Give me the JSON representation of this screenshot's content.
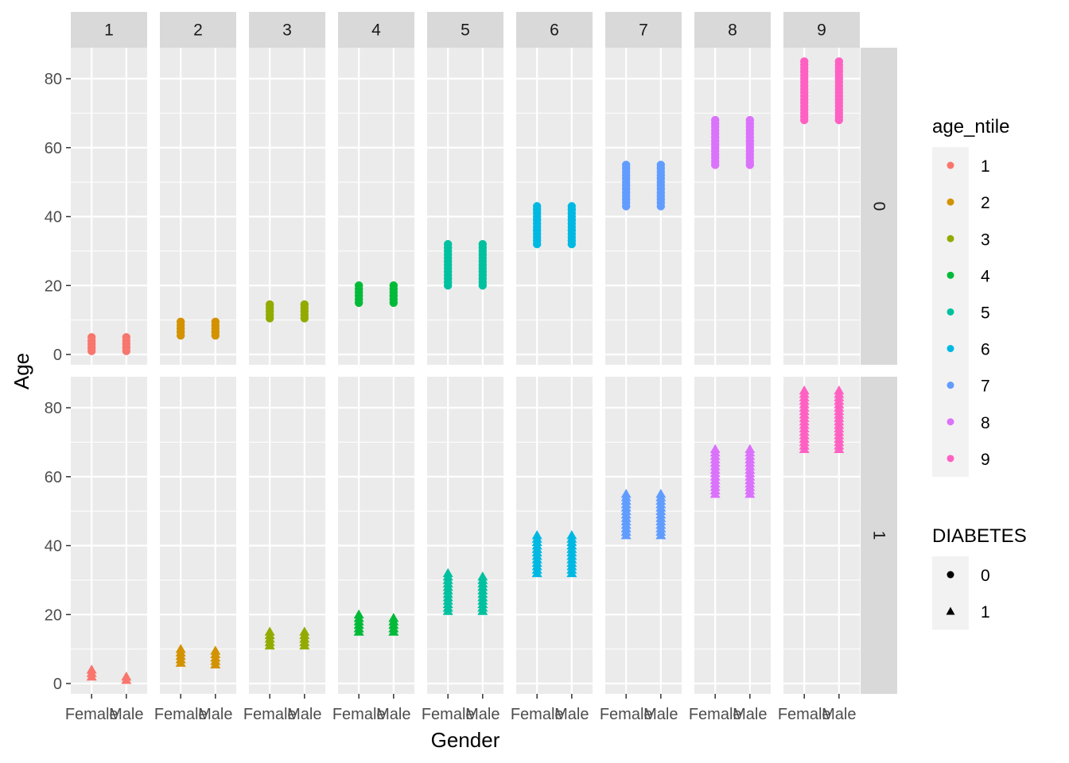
{
  "chart_data": {
    "type": "scatter",
    "facet_cols": [
      "1",
      "2",
      "3",
      "4",
      "5",
      "6",
      "7",
      "8",
      "9"
    ],
    "facet_rows": [
      "0",
      "1"
    ],
    "categories": [
      "Female",
      "Male"
    ],
    "xlabel": "Gender",
    "ylabel": "Age",
    "ylim": [
      -3,
      89
    ],
    "y_ticks": [
      0,
      20,
      40,
      60,
      80
    ],
    "grid": true,
    "legend_position": "right",
    "color_legend": {
      "title": "age_ntile",
      "items": [
        {
          "label": "1",
          "color": "#F8766D"
        },
        {
          "label": "2",
          "color": "#D39200"
        },
        {
          "label": "3",
          "color": "#93AA00"
        },
        {
          "label": "4",
          "color": "#00BA38"
        },
        {
          "label": "5",
          "color": "#00C19F"
        },
        {
          "label": "6",
          "color": "#00B9E3"
        },
        {
          "label": "7",
          "color": "#619CFF"
        },
        {
          "label": "8",
          "color": "#DB72FB"
        },
        {
          "label": "9",
          "color": "#FF61C3"
        }
      ]
    },
    "shape_legend": {
      "title": "DIABETES",
      "items": [
        {
          "label": "0",
          "shape": "circle"
        },
        {
          "label": "1",
          "shape": "triangle"
        }
      ]
    },
    "series": [
      {
        "diabetes": "0",
        "age_ntile": "1",
        "ranges": {
          "Female": [
            1,
            5
          ],
          "Male": [
            1,
            5
          ]
        }
      },
      {
        "diabetes": "0",
        "age_ntile": "2",
        "ranges": {
          "Female": [
            5.5,
            10
          ],
          "Male": [
            5.5,
            10
          ]
        }
      },
      {
        "diabetes": "0",
        "age_ntile": "3",
        "ranges": {
          "Female": [
            10.5,
            15
          ],
          "Male": [
            10.5,
            15
          ]
        }
      },
      {
        "diabetes": "0",
        "age_ntile": "4",
        "ranges": {
          "Female": [
            15,
            20
          ],
          "Male": [
            15,
            20
          ]
        }
      },
      {
        "diabetes": "0",
        "age_ntile": "5",
        "ranges": {
          "Female": [
            20,
            32
          ],
          "Male": [
            20,
            32
          ]
        }
      },
      {
        "diabetes": "0",
        "age_ntile": "6",
        "ranges": {
          "Female": [
            32,
            43
          ],
          "Male": [
            32,
            43
          ]
        }
      },
      {
        "diabetes": "0",
        "age_ntile": "7",
        "ranges": {
          "Female": [
            43,
            55
          ],
          "Male": [
            43,
            55
          ]
        }
      },
      {
        "diabetes": "0",
        "age_ntile": "8",
        "ranges": {
          "Female": [
            55,
            68
          ],
          "Male": [
            55,
            68
          ]
        }
      },
      {
        "diabetes": "0",
        "age_ntile": "9",
        "ranges": {
          "Female": [
            68,
            85
          ],
          "Male": [
            68,
            85
          ]
        }
      },
      {
        "diabetes": "1",
        "age_ntile": "1",
        "ranges": {
          "Female": [
            2,
            4
          ],
          "Male": [
            1,
            2
          ]
        }
      },
      {
        "diabetes": "1",
        "age_ntile": "2",
        "ranges": {
          "Female": [
            6,
            10
          ],
          "Male": [
            5.5,
            10
          ]
        }
      },
      {
        "diabetes": "1",
        "age_ntile": "3",
        "ranges": {
          "Female": [
            11,
            15
          ],
          "Male": [
            11,
            15
          ]
        }
      },
      {
        "diabetes": "1",
        "age_ntile": "4",
        "ranges": {
          "Female": [
            15,
            20
          ],
          "Male": [
            15,
            19
          ]
        }
      },
      {
        "diabetes": "1",
        "age_ntile": "5",
        "ranges": {
          "Female": [
            21,
            32
          ],
          "Male": [
            21,
            31
          ]
        }
      },
      {
        "diabetes": "1",
        "age_ntile": "6",
        "ranges": {
          "Female": [
            32,
            43
          ],
          "Male": [
            32,
            43
          ]
        }
      },
      {
        "diabetes": "1",
        "age_ntile": "7",
        "ranges": {
          "Female": [
            43,
            55
          ],
          "Male": [
            43,
            55
          ]
        }
      },
      {
        "diabetes": "1",
        "age_ntile": "8",
        "ranges": {
          "Female": [
            55,
            68
          ],
          "Male": [
            55,
            68
          ]
        }
      },
      {
        "diabetes": "1",
        "age_ntile": "9",
        "ranges": {
          "Female": [
            68,
            85
          ],
          "Male": [
            68,
            85
          ]
        }
      }
    ]
  }
}
